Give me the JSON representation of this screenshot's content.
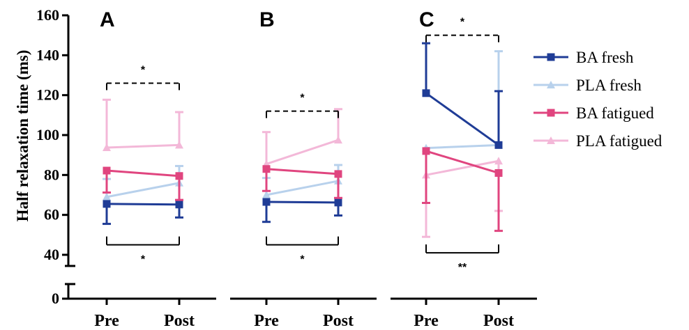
{
  "chart_data": {
    "type": "line",
    "ylabel": "Half relaxation time (ms)",
    "ylim": [
      0,
      160
    ],
    "y_broken_axis": true,
    "yticks": [
      0,
      40,
      60,
      80,
      100,
      120,
      140,
      160
    ],
    "categories": [
      "Pre",
      "Post"
    ],
    "grid": false,
    "legend_position": "right",
    "series_styles": [
      {
        "name": "BA fresh",
        "color": "#1f3c96",
        "marker": "square"
      },
      {
        "name": "PLA fresh",
        "color": "#b8d1ec",
        "marker": "triangle"
      },
      {
        "name": "BA fatigued",
        "color": "#e0457f",
        "marker": "square"
      },
      {
        "name": "PLA fatigued",
        "color": "#f3b8d8",
        "marker": "triangle"
      }
    ],
    "panels": [
      {
        "label": "A",
        "series": [
          {
            "name": "BA fresh",
            "values": [
              65.5,
              65.2
            ],
            "err_low": [
              10,
              6.5
            ],
            "err_high": [
              0,
              0
            ]
          },
          {
            "name": "PLA fresh",
            "values": [
              69,
              76
            ],
            "err_low": [
              0,
              0
            ],
            "err_high": [
              9,
              8.5
            ]
          },
          {
            "name": "BA fatigued",
            "values": [
              82.2,
              79.5
            ],
            "err_low": [
              11,
              12
            ],
            "err_high": [
              0,
              0
            ]
          },
          {
            "name": "PLA fatigued",
            "values": [
              93.7,
              95
            ],
            "err_low": [
              0,
              0
            ],
            "err_high": [
              24,
              16.5
            ]
          }
        ],
        "brackets": [
          {
            "position": "top",
            "style": "dashed",
            "level": 126,
            "label": "*"
          },
          {
            "position": "bottom",
            "style": "solid",
            "level": 45,
            "label": "*"
          }
        ]
      },
      {
        "label": "B",
        "series": [
          {
            "name": "BA fresh",
            "values": [
              66.5,
              66.2
            ],
            "err_low": [
              10,
              6.5
            ],
            "err_high": [
              0,
              0
            ]
          },
          {
            "name": "PLA fresh",
            "values": [
              70,
              77
            ],
            "err_low": [
              0,
              0
            ],
            "err_high": [
              8.5,
              8
            ]
          },
          {
            "name": "BA fatigued",
            "values": [
              83,
              80.5
            ],
            "err_low": [
              11,
              12
            ],
            "err_high": [
              0,
              0
            ]
          },
          {
            "name": "PLA fatigued",
            "values": [
              85.5,
              97.5
            ],
            "err_low": [
              0,
              0
            ],
            "err_high": [
              16,
              15.5
            ]
          }
        ],
        "brackets": [
          {
            "position": "top",
            "style": "dashed",
            "level": 112,
            "label": "*"
          },
          {
            "position": "bottom",
            "style": "solid",
            "level": 45,
            "label": "*"
          }
        ]
      },
      {
        "label": "C",
        "series": [
          {
            "name": "BA fresh",
            "values": [
              121,
              95
            ],
            "err_low": [
              0,
              0
            ],
            "err_high": [
              25,
              27
            ]
          },
          {
            "name": "PLA fresh",
            "values": [
              93.5,
              95
            ],
            "err_low": [
              0,
              0
            ],
            "err_high": [
              0,
              47
            ]
          },
          {
            "name": "BA fatigued",
            "values": [
              92,
              81
            ],
            "err_low": [
              26,
              29
            ],
            "err_high": [
              0,
              0
            ]
          },
          {
            "name": "PLA fatigued",
            "values": [
              80,
              87
            ],
            "err_low": [
              31,
              25
            ],
            "err_high": [
              0,
              0
            ]
          }
        ],
        "brackets": [
          {
            "position": "top",
            "style": "dashed",
            "level": 150,
            "label": "*"
          },
          {
            "position": "bottom",
            "style": "solid",
            "level": 41,
            "label": "**"
          }
        ]
      }
    ]
  }
}
